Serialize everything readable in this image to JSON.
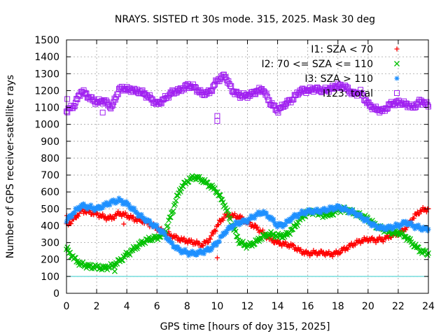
{
  "chart_data": {
    "type": "scatter",
    "title": "NRAYS. SISTED rt 30s mode. 315, 2025. Mask 30 deg",
    "xlabel": "GPS time [hours of doy 315, 2025]",
    "ylabel": "Number of GPS receiver-satellite rays",
    "xlim": [
      0,
      24
    ],
    "ylim": [
      0,
      1500
    ],
    "xticks": [
      0,
      2,
      4,
      6,
      8,
      10,
      12,
      14,
      16,
      18,
      20,
      22,
      24
    ],
    "yticks": [
      0,
      100,
      200,
      300,
      400,
      500,
      600,
      700,
      800,
      900,
      1000,
      1100,
      1200,
      1300,
      1400,
      1500
    ],
    "grid": true,
    "legend_position": "top-right",
    "threshold_line": {
      "value": 100,
      "color": "#33cccc"
    },
    "series": [
      {
        "name": "I1: SZA < 70",
        "color": "#ff0000",
        "marker": "plus",
        "x": [
          0,
          0.5,
          1,
          1.5,
          2,
          2.5,
          3,
          3.5,
          4,
          4.5,
          5,
          5.5,
          6,
          6.5,
          7,
          7.5,
          8,
          8.5,
          9,
          9.5,
          10,
          10.5,
          11,
          11.5,
          12,
          12.5,
          13,
          13.5,
          14,
          14.5,
          15,
          15.5,
          16,
          16.5,
          17,
          17.5,
          18,
          18.5,
          19,
          19.5,
          20,
          20.5,
          21,
          21.5,
          22,
          22.5,
          23,
          23.5,
          24
        ],
        "values": [
          405,
          440,
          490,
          480,
          470,
          450,
          445,
          475,
          460,
          440,
          430,
          410,
          385,
          360,
          340,
          320,
          310,
          300,
          285,
          320,
          400,
          460,
          460,
          450,
          420,
          395,
          360,
          320,
          300,
          290,
          280,
          250,
          235,
          240,
          240,
          230,
          240,
          265,
          290,
          310,
          320,
          315,
          320,
          340,
          355,
          385,
          450,
          490,
          500
        ],
        "outliers": [
          {
            "x": 0.02,
            "y": 460
          },
          {
            "x": 3.8,
            "y": 410
          },
          {
            "x": 10.0,
            "y": 210
          }
        ]
      },
      {
        "name": "I2: 70 <= SZA <= 110",
        "color": "#00c000",
        "marker": "cross",
        "x": [
          0,
          0.5,
          1,
          1.5,
          2,
          2.5,
          3,
          3.5,
          4,
          4.5,
          5,
          5.5,
          6,
          6.5,
          7,
          7.5,
          8,
          8.5,
          9,
          9.5,
          10,
          10.5,
          11,
          11.5,
          12,
          12.5,
          13,
          13.5,
          14,
          14.5,
          15,
          15.5,
          16,
          16.5,
          17,
          17.5,
          18,
          18.5,
          19,
          19.5,
          20,
          20.5,
          21,
          21.5,
          22,
          22.5,
          23,
          23.5,
          24
        ],
        "values": [
          265,
          205,
          170,
          160,
          155,
          150,
          160,
          190,
          230,
          265,
          300,
          320,
          330,
          350,
          480,
          610,
          665,
          690,
          670,
          640,
          600,
          520,
          400,
          300,
          280,
          300,
          335,
          350,
          340,
          340,
          380,
          440,
          480,
          480,
          470,
          465,
          495,
          495,
          480,
          460,
          440,
          400,
          380,
          360,
          360,
          335,
          290,
          250,
          235
        ],
        "outliers": [
          {
            "x": 3.2,
            "y": 130
          },
          {
            "x": 17.0,
            "y": 450
          }
        ]
      },
      {
        "name": "I3: SZA > 110",
        "color": "#1e90ff",
        "marker": "star",
        "x": [
          0,
          0.5,
          1,
          1.5,
          2,
          2.5,
          3,
          3.5,
          4,
          4.5,
          5,
          5.5,
          6,
          6.5,
          7,
          7.5,
          8,
          8.5,
          9,
          9.5,
          10,
          10.5,
          11,
          11.5,
          12,
          12.5,
          13,
          13.5,
          14,
          14.5,
          15,
          15.5,
          16,
          16.5,
          17,
          17.5,
          18,
          18.5,
          19,
          19.5,
          20,
          20.5,
          21,
          21.5,
          22,
          22.5,
          23,
          23.5,
          24
        ],
        "values": [
          430,
          480,
          520,
          510,
          500,
          520,
          540,
          550,
          530,
          490,
          450,
          420,
          390,
          350,
          290,
          255,
          240,
          235,
          245,
          260,
          300,
          360,
          400,
          420,
          430,
          460,
          480,
          450,
          400,
          410,
          450,
          470,
          485,
          485,
          490,
          500,
          510,
          495,
          480,
          455,
          425,
          395,
          385,
          390,
          400,
          420,
          400,
          385,
          380
        ],
        "outliers": []
      },
      {
        "name": "I123: total",
        "color": "#a020f0",
        "marker": "square",
        "x": [
          0,
          0.5,
          1,
          1.5,
          2,
          2.5,
          3,
          3.5,
          4,
          4.5,
          5,
          5.5,
          6,
          6.5,
          7,
          7.5,
          8,
          8.5,
          9,
          9.5,
          10,
          10.5,
          11,
          11.5,
          12,
          12.5,
          13,
          13.5,
          14,
          14.5,
          15,
          15.5,
          16,
          16.5,
          17,
          17.5,
          18,
          18.5,
          19,
          19.5,
          20,
          20.5,
          21,
          21.5,
          22,
          22.5,
          23,
          23.5,
          24
        ],
        "values": [
          1080,
          1110,
          1200,
          1160,
          1130,
          1140,
          1100,
          1210,
          1210,
          1200,
          1190,
          1160,
          1120,
          1150,
          1190,
          1200,
          1230,
          1220,
          1180,
          1190,
          1260,
          1290,
          1200,
          1170,
          1170,
          1190,
          1210,
          1130,
          1080,
          1120,
          1150,
          1200,
          1200,
          1210,
          1200,
          1210,
          1230,
          1220,
          1180,
          1190,
          1120,
          1090,
          1080,
          1120,
          1130,
          1120,
          1100,
          1140,
          1110
        ],
        "outliers": [
          {
            "x": 0.05,
            "y": 1150
          },
          {
            "x": 2.4,
            "y": 1070
          },
          {
            "x": 10.0,
            "y": 1050
          },
          {
            "x": 10.0,
            "y": 1020
          }
        ]
      }
    ]
  }
}
